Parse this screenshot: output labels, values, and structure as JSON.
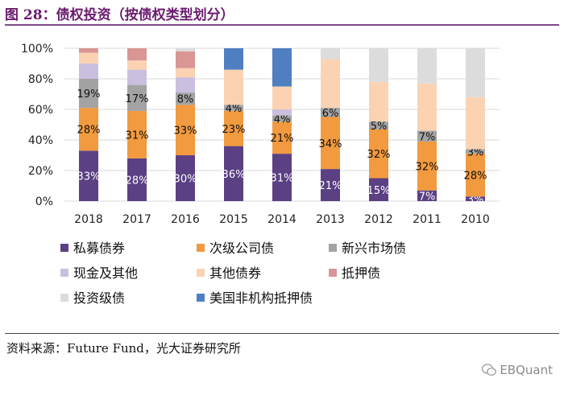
{
  "header": {
    "title": "图 28：债权投资（按债权类型划分）"
  },
  "source": {
    "text": "资料来源：Future Fund，光大证券研究所"
  },
  "brand": {
    "label": "EBQuant",
    "icon": "wechat-icon"
  },
  "chart_data": {
    "type": "bar",
    "stacked": true,
    "categories": [
      "2018",
      "2017",
      "2016",
      "2015",
      "2014",
      "2013",
      "2012",
      "2011",
      "2010"
    ],
    "ylim": [
      0,
      100
    ],
    "yticks": [
      "0%",
      "20%",
      "40%",
      "60%",
      "80%",
      "100%"
    ],
    "grid": true,
    "legend_position": "bottom",
    "series": [
      {
        "name": "私募债券",
        "color": "#5b4084",
        "label_color": "#ffffff",
        "values": [
          33,
          28,
          30,
          36,
          31,
          21,
          15,
          7,
          3
        ],
        "labels": [
          "33%",
          "28%",
          "30%",
          "36%",
          "31%",
          "21%",
          "15%",
          "7%",
          "3%"
        ]
      },
      {
        "name": "次级公司债",
        "color": "#f29a3f",
        "label_color": "#111111",
        "values": [
          28,
          31,
          33,
          23,
          21,
          34,
          32,
          32,
          28
        ],
        "labels": [
          "28%",
          "31%",
          "33%",
          "23%",
          "21%",
          "34%",
          "32%",
          "32%",
          "28%"
        ]
      },
      {
        "name": "新兴市场债",
        "color": "#a3a3a3",
        "label_color": "#111111",
        "values": [
          19,
          17,
          8,
          4,
          4,
          6,
          5,
          7,
          3
        ],
        "labels": [
          "19%",
          "17%",
          "8%",
          "4%",
          "4%",
          "6%",
          "5%",
          "7%",
          "3%"
        ]
      },
      {
        "name": "现金及其他",
        "color": "#cbbfe0",
        "label_color": "#111111",
        "values": [
          10,
          10,
          10,
          0,
          4,
          0,
          0,
          0,
          0
        ],
        "labels": [
          "",
          "",
          "",
          "",
          "",
          "",
          "",
          "",
          ""
        ]
      },
      {
        "name": "其他债券",
        "color": "#fbd3b3",
        "label_color": "#111111",
        "values": [
          7,
          6,
          6,
          23,
          15,
          32,
          26,
          31,
          34
        ],
        "labels": [
          "",
          "",
          "",
          "",
          "",
          "",
          "",
          "",
          ""
        ]
      },
      {
        "name": "抵押债",
        "color": "#d99694",
        "label_color": "#111111",
        "values": [
          3,
          8,
          11,
          0,
          0,
          0,
          0,
          0,
          0
        ],
        "labels": [
          "",
          "",
          "",
          "",
          "",
          "",
          "",
          "",
          ""
        ]
      },
      {
        "name": "投资级债",
        "color": "#dcdcdc",
        "label_color": "#111111",
        "values": [
          0,
          0,
          2,
          0,
          0,
          7,
          22,
          23,
          32
        ],
        "labels": [
          "",
          "",
          "",
          "",
          "",
          "",
          "",
          "",
          ""
        ]
      },
      {
        "name": "美国非机构抵押债",
        "color": "#4f7fc1",
        "label_color": "#111111",
        "values": [
          0,
          0,
          0,
          14,
          25,
          0,
          0,
          0,
          0
        ],
        "labels": [
          "",
          "",
          "",
          "",
          "",
          "",
          "",
          "",
          ""
        ]
      }
    ]
  }
}
